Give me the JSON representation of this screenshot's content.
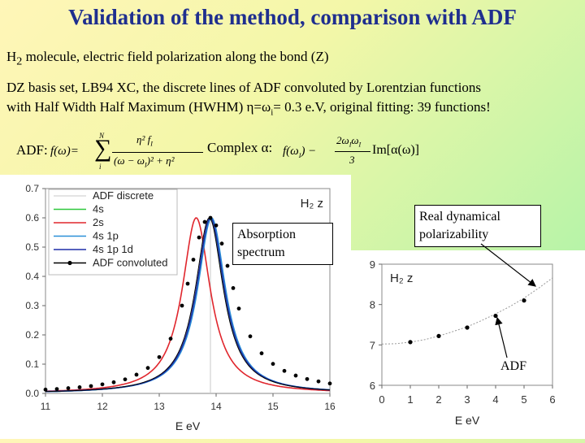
{
  "slide": {
    "title": "Validation of the method, comparison with ADF",
    "line1_prefix": "H",
    "line1_sub": "2",
    "line1_rest": " molecule, electric field polarization along the bond (Z)",
    "line2a": "DZ basis set, LB94 XC, the discrete lines of ADF convoluted by Lorentzian functions",
    "line2b_pre": "with Half Width Half Maximum (HWHM) η=ω",
    "line2b_sub": "i",
    "line2b_post": "= 0.3 e.V, original fitting: 39 functions!",
    "adf_label": "ADF:",
    "complex_label": "Complex α:",
    "formula_adf": {
      "lhs": "f(ω)=",
      "sum_top": "N",
      "sum_bottom": "i",
      "num": "η² f",
      "num_sub": "I",
      "den": "(ω − ω",
      "den_sub": "I",
      "den_post": ")² + η²"
    },
    "formula_complex": {
      "lhs": "f(ω",
      "lhs_sub": "I",
      "lhs_post": ") −",
      "num": "2ω",
      "num_sub1": "I",
      "num_mid": "ω",
      "num_sub2": "I",
      "den": "3",
      "im": "Im[α(ω)]"
    },
    "callout_absorption": [
      "Absorption",
      "spectrum"
    ],
    "callout_real": [
      "Real dynamical",
      "polarizability"
    ],
    "callout_adf": "ADF",
    "colors": {
      "title": "#1f2f8f"
    }
  },
  "chart_data": [
    {
      "type": "line",
      "title": "H₂ z",
      "xlabel": "E eV",
      "ylabel": "",
      "xlim": [
        11,
        16
      ],
      "ylim": [
        0,
        0.7
      ],
      "xticks": [
        11,
        12,
        13,
        14,
        15,
        16
      ],
      "yticks": [
        0.0,
        0.1,
        0.2,
        0.3,
        0.4,
        0.5,
        0.6,
        0.7
      ],
      "grid": false,
      "legend_position": "top-left",
      "legend": [
        "ADF discrete",
        "4s",
        "2s",
        "4s 1p",
        "4s 1p 1d",
        "ADF convoluted"
      ],
      "series": [
        {
          "name": "ADF discrete",
          "color": "#c8c8c8",
          "x": [
            13.9,
            13.9
          ],
          "values": [
            0,
            0.6
          ]
        },
        {
          "name": "4s",
          "color": "#2ec83c",
          "peak_x": 13.9,
          "peak_y": 0.595,
          "hwhm": 0.3
        },
        {
          "name": "2s",
          "color": "#e0262d",
          "peak_x": 13.65,
          "peak_y": 0.6,
          "hwhm": 0.3
        },
        {
          "name": "4s 1p",
          "color": "#2a8fd8",
          "peak_x": 13.92,
          "peak_y": 0.6,
          "hwhm": 0.3
        },
        {
          "name": "4s 1p 1d",
          "color": "#1f2fa8",
          "peak_x": 13.9,
          "peak_y": 0.6,
          "hwhm": 0.3
        },
        {
          "name": "ADF convoluted",
          "color": "#000000",
          "peak_x": 13.88,
          "peak_y": 0.6,
          "hwhm": 0.3,
          "x": [
            11.0,
            11.2,
            11.4,
            11.6,
            11.8,
            12.0,
            12.2,
            12.4,
            12.6,
            12.8,
            13.0,
            13.2,
            13.4,
            13.5,
            13.6,
            13.7,
            13.8,
            13.9,
            14.0,
            14.1,
            14.2,
            14.3,
            14.4,
            14.6,
            14.8,
            15.0,
            15.2,
            15.4,
            15.6,
            15.8,
            16.0
          ],
          "values": [
            0.013,
            0.015,
            0.018,
            0.021,
            0.025,
            0.031,
            0.038,
            0.048,
            0.064,
            0.087,
            0.124,
            0.187,
            0.3,
            0.375,
            0.457,
            0.533,
            0.586,
            0.6,
            0.574,
            0.512,
            0.436,
            0.36,
            0.29,
            0.195,
            0.137,
            0.101,
            0.077,
            0.061,
            0.049,
            0.041,
            0.034
          ]
        }
      ]
    },
    {
      "type": "line",
      "title": "H₂ z",
      "xlabel": "E eV",
      "ylabel": "",
      "xlim": [
        0,
        6
      ],
      "ylim": [
        6,
        9
      ],
      "xticks": [
        0,
        1,
        2,
        3,
        4,
        5,
        6
      ],
      "yticks": [
        6,
        7,
        8,
        9
      ],
      "grid": false,
      "series": [
        {
          "name": "",
          "color": "#999999",
          "style": "dotted",
          "x": [
            0,
            0.5,
            1,
            1.5,
            2,
            2.5,
            3,
            3.5,
            4,
            4.5,
            5,
            5.5,
            6
          ],
          "values": [
            7.02,
            7.03,
            7.07,
            7.13,
            7.22,
            7.33,
            7.45,
            7.6,
            7.77,
            7.95,
            8.16,
            8.4,
            8.66
          ]
        },
        {
          "name": "ADF",
          "color": "#000000",
          "style": "markers",
          "x": [
            1,
            2,
            3,
            4,
            5
          ],
          "values": [
            7.07,
            7.22,
            7.43,
            7.72,
            8.1
          ]
        }
      ]
    }
  ]
}
